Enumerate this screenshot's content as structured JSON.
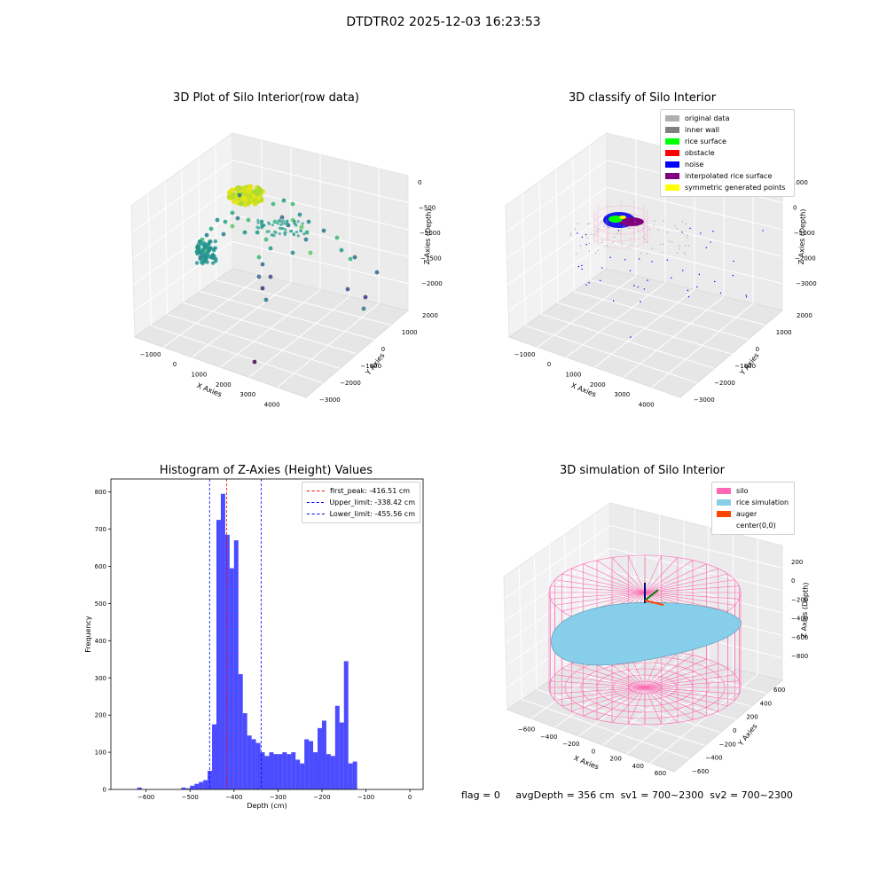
{
  "suptitle": "DTDTR02 2025-12-03 16:23:53",
  "panels": {
    "p1": {
      "title": "3D Plot of Silo Interior(row data)",
      "xlabel": "X Axies",
      "ylabel": "Y Axies",
      "zlabel": "Z Axies (Depth)",
      "xticks": [
        "−1000",
        "0",
        "1000",
        "2000",
        "3000",
        "4000"
      ],
      "yticks": [
        "2000",
        "1000",
        "0",
        "−1000",
        "−2000",
        "−3000"
      ],
      "zticks": [
        "0",
        "−500",
        "−1000",
        "−1500",
        "−2000"
      ]
    },
    "p2": {
      "title": "3D classify of Silo Interior",
      "xlabel": "X Axies",
      "ylabel": "Y Axies",
      "zlabel": "Z Axies (Depth)",
      "xticks": [
        "−1000",
        "0",
        "1000",
        "2000",
        "3000",
        "4000"
      ],
      "yticks": [
        "2000",
        "1000",
        "0",
        "−1000",
        "−2000",
        "−3000"
      ],
      "zticks": [
        "1000",
        "0",
        "−1000",
        "−2000",
        "−3000"
      ],
      "legend": [
        {
          "label": "original data",
          "color": "#b0b0b0"
        },
        {
          "label": "inner wall",
          "color": "#808080"
        },
        {
          "label": "rice surface",
          "color": "#00ff00"
        },
        {
          "label": "obstacle",
          "color": "#ff0000"
        },
        {
          "label": "noise",
          "color": "#0000ff"
        },
        {
          "label": "interpolated rice surface",
          "color": "#800080"
        },
        {
          "label": "symmetric generated points",
          "color": "#ffff00"
        }
      ]
    },
    "p4": {
      "title": "3D simulation of Silo Interior",
      "xlabel": "X Axies",
      "ylabel": "Y Axies",
      "zlabel": "Z Axies (Depth)",
      "xticks": [
        "−600",
        "−400",
        "−200",
        "0",
        "200",
        "400",
        "600"
      ],
      "yticks": [
        "600",
        "400",
        "200",
        "0",
        "−200",
        "−400",
        "−600"
      ],
      "zticks": [
        "200",
        "0",
        "−200",
        "−400",
        "−600",
        "−800"
      ],
      "legend": [
        {
          "label": "silo",
          "color": "#ff69b4"
        },
        {
          "label": "rice simulation",
          "color": "#87ceeb"
        },
        {
          "label": "auger",
          "color": "#ff4500"
        },
        {
          "label": "center(0,0)",
          "color": ""
        }
      ]
    }
  },
  "status": {
    "flag": "flag = 0",
    "avg": "avgDepth = 356 cm",
    "sv1": "sv1 = 700~2300",
    "sv2": "sv2 = 700~2300"
  },
  "chart_data": {
    "type": "bar",
    "title": "Histogram of Z-Axies (Height) Values",
    "xlabel": "Depth (cm)",
    "ylabel": "Frequency",
    "xlim": [
      -680,
      30
    ],
    "ylim": [
      0,
      835
    ],
    "xticks": [
      -600,
      -500,
      -400,
      -300,
      -200,
      -100,
      0
    ],
    "yticks": [
      0,
      100,
      200,
      300,
      400,
      500,
      600,
      700,
      800
    ],
    "bin_width": 10,
    "bin_starts": [
      -620,
      -610,
      -520,
      -510,
      -500,
      -490,
      -480,
      -470,
      -460,
      -450,
      -440,
      -430,
      -420,
      -410,
      -400,
      -390,
      -380,
      -370,
      -360,
      -350,
      -340,
      -330,
      -320,
      -310,
      -300,
      -290,
      -280,
      -270,
      -260,
      -250,
      -240,
      -230,
      -220,
      -210,
      -200,
      -190,
      -180,
      -170,
      -160,
      -150,
      -140,
      -130,
      -120,
      -110,
      -100,
      -90,
      -80,
      -70,
      -60,
      -50,
      -40,
      -30,
      -20,
      -10,
      0
    ],
    "counts": [
      5,
      0,
      5,
      3,
      10,
      15,
      20,
      25,
      50,
      175,
      725,
      795,
      685,
      595,
      670,
      310,
      205,
      145,
      135,
      125,
      100,
      90,
      100,
      95,
      95,
      100,
      95,
      100,
      80,
      70,
      135,
      130,
      100,
      165,
      185,
      95,
      90,
      225,
      180,
      345,
      70,
      75,
      0,
      0,
      0,
      0,
      0,
      0,
      0,
      0,
      0,
      0,
      0,
      0,
      0
    ],
    "bar_color": "#0000ff",
    "lines": [
      {
        "label": "first_peak: -416.51 cm",
        "x": -416.51,
        "color": "#ff0000"
      },
      {
        "label": "Upper_limit: -338.42 cm",
        "x": -338.42,
        "color": "#0000ff"
      },
      {
        "label": "Lower_limit: -455.56 cm",
        "x": -455.56,
        "color": "#0000ff"
      }
    ],
    "legend_position": "top-right"
  }
}
